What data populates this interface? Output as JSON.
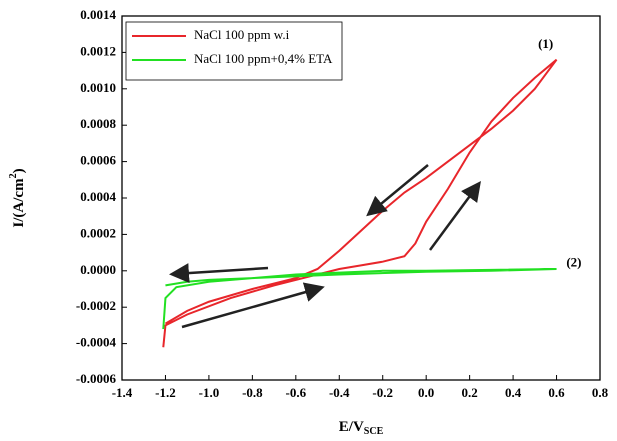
{
  "chart_data": {
    "type": "line",
    "xlabel": "E/V",
    "xlabel_sub": "SCE",
    "ylabel_parts": [
      "I/(A/cm",
      "2",
      ")"
    ],
    "xlim": [
      -1.4,
      0.8
    ],
    "xticks": [
      -1.4,
      -1.2,
      {
        "value": -1.0,
        "label": "-1.0"
      },
      -0.8,
      -0.6,
      -0.4,
      -0.2,
      {
        "value": 0.0,
        "label": "0.0"
      },
      0.2,
      0.4,
      0.6,
      0.8
    ],
    "ylim": [
      -0.0006,
      0.0014
    ],
    "yticks": [
      {
        "value": -0.0006,
        "label": "-0.0006"
      },
      {
        "value": -0.0004,
        "label": "-0.0004"
      },
      {
        "value": -0.0002,
        "label": "-0.0002"
      },
      {
        "value": 0,
        "label": "0.0000"
      },
      {
        "value": 0.0002,
        "label": "0.0002"
      },
      {
        "value": 0.0004,
        "label": "0.0004"
      },
      {
        "value": 0.0006,
        "label": "0.0006"
      },
      {
        "value": 0.0008,
        "label": "0.0008"
      },
      {
        "value": 0.001,
        "label": "0.0010"
      },
      {
        "value": 0.0012,
        "label": "0.0012"
      },
      0.0014
    ],
    "legend": "top-left",
    "annotations": [
      {
        "text": "(1)",
        "x": 0.55,
        "y": 0.00124
      },
      {
        "text": "(2)",
        "x": 0.68,
        "y": 4e-05
      }
    ],
    "series": [
      {
        "name": "NaCl 100 ppm w.i",
        "color": "#e8262b",
        "x": [
          -1.21,
          -1.2,
          -1.1,
          -0.9,
          -0.7,
          -0.5,
          -0.4,
          -0.3,
          -0.2,
          -0.1,
          -0.05,
          0.0,
          0.1,
          0.2,
          0.3,
          0.4,
          0.5,
          0.6,
          0.5,
          0.4,
          0.3,
          0.2,
          0.1,
          0.0,
          -0.1,
          -0.2,
          -0.3,
          -0.4,
          -0.5,
          -0.6,
          -0.8,
          -1.0,
          -1.1,
          -1.2
        ],
        "values": [
          -0.00042,
          -0.0003,
          -0.00024,
          -0.00015,
          -8e-05,
          -2e-05,
          1e-05,
          3e-05,
          5e-05,
          8e-05,
          0.00015,
          0.00027,
          0.00045,
          0.00065,
          0.00082,
          0.00095,
          0.00106,
          0.00116,
          0.001,
          0.00088,
          0.00078,
          0.00069,
          0.0006,
          0.00051,
          0.00043,
          0.00033,
          0.00022,
          0.00011,
          1e-05,
          -4e-05,
          -0.0001,
          -0.00017,
          -0.00022,
          -0.00029
        ]
      },
      {
        "name": "NaCl 100 ppm+0,4% ETA",
        "color": "#22e022",
        "x": [
          -1.21,
          -1.2,
          -1.15,
          -1.0,
          -0.8,
          -0.6,
          -0.4,
          -0.2,
          0.0,
          0.3,
          0.6,
          0.3,
          0.0,
          -0.4,
          -0.8,
          -1.0,
          -1.1,
          -1.2
        ],
        "values": [
          -0.00032,
          -0.00015,
          -9e-05,
          -6e-05,
          -4e-05,
          -2e-05,
          -1e-05,
          0,
          0,
          5e-06,
          1e-05,
          0,
          -5e-06,
          -2e-05,
          -4e-05,
          -5e-05,
          -6e-05,
          -8e-05
        ]
      }
    ]
  }
}
